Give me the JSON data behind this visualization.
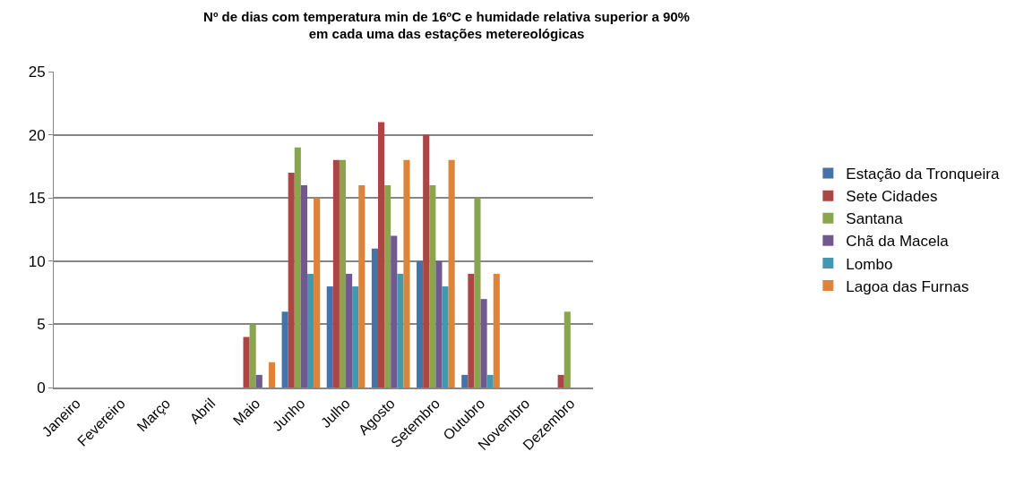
{
  "chart_data": {
    "type": "bar",
    "title": "Nº de dias com temperatura min de 16ºC e humidade relativa superior a 90%\nem cada uma das estações metereológicas",
    "categories": [
      "Janeiro",
      "Fevereiro",
      "Março",
      "Abril",
      "Maio",
      "Junho",
      "Julho",
      "Agosto",
      "Setembro",
      "Outubro",
      "Novembro",
      "Dezembro"
    ],
    "series": [
      {
        "name": "Estação da Tronqueira",
        "color": "#4572a7",
        "values": [
          0,
          0,
          0,
          0,
          0,
          6,
          8,
          11,
          10,
          1,
          0,
          0
        ]
      },
      {
        "name": "Sete Cidades",
        "color": "#aa4643",
        "values": [
          0,
          0,
          0,
          0,
          4,
          17,
          18,
          21,
          20,
          9,
          0,
          1
        ]
      },
      {
        "name": "Santana",
        "color": "#89a54e",
        "values": [
          0,
          0,
          0,
          0,
          5,
          19,
          18,
          16,
          16,
          15,
          0,
          6
        ]
      },
      {
        "name": "Chã da Macela",
        "color": "#71588f",
        "values": [
          0,
          0,
          0,
          0,
          1,
          16,
          9,
          12,
          10,
          7,
          0,
          0
        ]
      },
      {
        "name": "Lombo",
        "color": "#4198af",
        "values": [
          0,
          0,
          0,
          0,
          0,
          9,
          8,
          9,
          8,
          1,
          0,
          0
        ]
      },
      {
        "name": "Lagoa das Furnas",
        "color": "#db843d",
        "values": [
          0,
          0,
          0,
          0,
          2,
          15,
          16,
          18,
          18,
          9,
          0,
          0
        ]
      }
    ],
    "ylim": [
      0,
      25
    ],
    "yticks": [
      0,
      5,
      10,
      15,
      20,
      25
    ],
    "grid": "y",
    "legend": "right"
  }
}
